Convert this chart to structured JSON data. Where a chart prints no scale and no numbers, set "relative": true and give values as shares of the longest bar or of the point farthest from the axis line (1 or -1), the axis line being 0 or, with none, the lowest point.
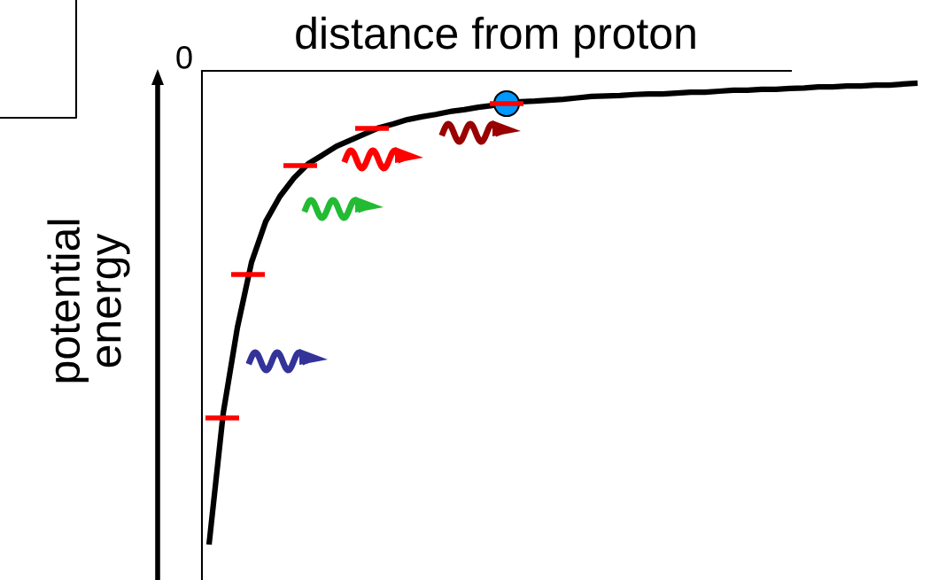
{
  "chart_data": {
    "type": "line",
    "relative": true,
    "title": "distance from proton",
    "ylabel": "potential\nenergy",
    "annotations": [
      "0"
    ],
    "categories": [
      null,
      null,
      null,
      null,
      null,
      null,
      null,
      null,
      null,
      null,
      null,
      null,
      null,
      null,
      null,
      null,
      null,
      null,
      null,
      null,
      null,
      null,
      null,
      null,
      null,
      null,
      null,
      null,
      null,
      null,
      null,
      null,
      null,
      null,
      null,
      null,
      null,
      null,
      null,
      null,
      null,
      null,
      null,
      null,
      null,
      null,
      null,
      null,
      null,
      null,
      null
    ],
    "series": [
      {
        "type": "line",
        "color": "#000000",
        "values": [
          -1.0,
          -0.723,
          -0.542,
          -0.404,
          -0.318,
          -0.265,
          -0.226,
          -0.196,
          -0.178,
          -0.159,
          -0.146,
          -0.133,
          -0.12,
          -0.112,
          -0.103,
          -0.097,
          -0.092,
          -0.086,
          -0.082,
          -0.077,
          -0.073,
          -0.067,
          -0.065,
          -0.064,
          -0.062,
          -0.06,
          -0.057,
          -0.054,
          -0.053,
          -0.052,
          -0.05,
          -0.049,
          -0.049,
          -0.047,
          -0.045,
          -0.045,
          -0.043,
          -0.041,
          -0.041,
          -0.039,
          -0.039,
          -0.037,
          -0.036,
          -0.034,
          -0.034,
          -0.032,
          -0.032,
          -0.03,
          -0.03,
          -0.028,
          -0.026
        ]
      }
    ]
  }
}
